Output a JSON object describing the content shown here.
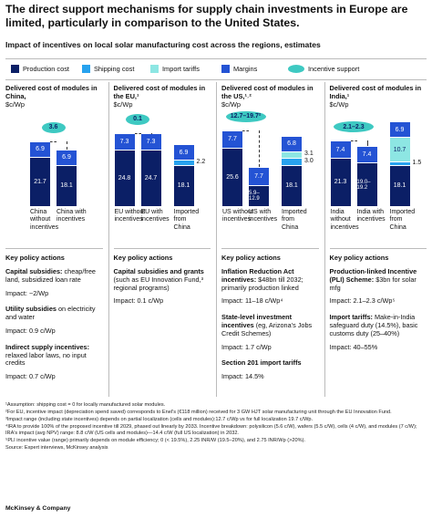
{
  "title": "The direct support mechanisms for supply chain investments in Europe are limited, particularly in comparison to the United States.",
  "subtitle": "Impact of incentives on local solar manufacturing cost across the regions, estimates",
  "incentive_legend": "Incentive support",
  "incentive_color": "#3ec9c2",
  "policy_heading": "Key policy actions",
  "chart_data": [
    {
      "type": "bar",
      "stacked": true,
      "title": "Delivered cost of modules in China,",
      "unit": "$c/Wp",
      "incentive": "3.6",
      "categories": [
        "China without incentives",
        "China with incentives"
      ],
      "series": [
        {
          "name": "Production cost",
          "color": "#0b1f66",
          "values": [
            21.7,
            18.1
          ]
        },
        {
          "name": "Shipping cost",
          "color": "#27a2ee",
          "values": [
            null,
            null
          ]
        },
        {
          "name": "Import tariffs",
          "color": "#8de6e3",
          "values": [
            null,
            null
          ]
        },
        {
          "name": "Margins",
          "color": "#2453d4",
          "values": [
            6.9,
            6.9
          ]
        }
      ],
      "actions": [
        {
          "heading": "Capital subsidies:",
          "text": "cheap/free land, subsidized loan rate",
          "impact": "Impact: ~2/Wp"
        },
        {
          "heading": "Utility subsidies",
          "text": "on electricity and water",
          "impact": "Impact: 0.9 c/Wp"
        },
        {
          "heading": "Indirect supply incentives:",
          "text": "relaxed labor laws, no input credits",
          "impact": "Impact: 0.7 c/Wp"
        }
      ]
    },
    {
      "type": "bar",
      "stacked": true,
      "title": "Delivered cost of modules in the EU,¹",
      "unit": "$c/Wp",
      "incentive": "0.1",
      "categories": [
        "EU without incentives",
        "EU with incentives",
        "Imported from China"
      ],
      "series": [
        {
          "name": "Production cost",
          "color": "#0b1f66",
          "values": [
            24.8,
            24.7,
            18.1
          ]
        },
        {
          "name": "Shipping cost",
          "color": "#27a2ee",
          "values": [
            null,
            null,
            2.2
          ]
        },
        {
          "name": "Import tariffs",
          "color": "#8de6e3",
          "values": [
            null,
            null,
            null
          ]
        },
        {
          "name": "Margins",
          "color": "#2453d4",
          "values": [
            7.3,
            7.3,
            6.9
          ]
        }
      ],
      "actions": [
        {
          "heading": "Capital subsidies and grants",
          "text": "(such as EU Innovation Fund,³ regional programs)",
          "impact": "Impact: 0.1 c/Wp"
        }
      ]
    },
    {
      "type": "bar",
      "stacked": true,
      "title": "Delivered cost of modules in the US,¹˒²",
      "unit": "$c/Wp",
      "incentive": "12.7–19.7²",
      "categories": [
        "US without incentives",
        "US with incentives",
        "Imported from China"
      ],
      "series": [
        {
          "name": "Production cost",
          "color": "#0b1f66",
          "values": [
            25.6,
            9.4,
            18.1
          ],
          "value_labels": [
            "25.6",
            "5.9–12.9",
            "18.1"
          ]
        },
        {
          "name": "Shipping cost",
          "color": "#27a2ee",
          "values": [
            null,
            null,
            3
          ],
          "value_labels": [
            null,
            null,
            "3.0"
          ]
        },
        {
          "name": "Import tariffs",
          "color": "#8de6e3",
          "values": [
            null,
            null,
            3.1
          ]
        },
        {
          "name": "Margins",
          "color": "#2453d4",
          "values": [
            7.7,
            7.7,
            6.8
          ]
        }
      ],
      "actions": [
        {
          "heading": "Inflation Reduction Act incentives:",
          "text": "$48bn till 2032; primarily production linked",
          "impact": "Impact: 11–18 c/Wp⁴"
        },
        {
          "heading": "State-level investment incentives",
          "text": "(eg, Arizona's Jobs Credit Schemes)",
          "impact": "Impact: 1.7 c/Wp"
        },
        {
          "heading": "Section 201 import tariffs",
          "impact": "Impact: 14.5%"
        }
      ]
    },
    {
      "type": "bar",
      "stacked": true,
      "title": "Delivered cost of modules in India,¹",
      "unit": "$c/Wp",
      "incentive": "2.1–2.3",
      "categories": [
        "India without incentives",
        "India with incentives",
        "Imported from China"
      ],
      "series": [
        {
          "name": "Production cost",
          "color": "#0b1f66",
          "values": [
            21.3,
            19.1,
            18.1
          ],
          "value_labels": [
            "21.3",
            "19.0–19.2",
            "18.1"
          ]
        },
        {
          "name": "Shipping cost",
          "color": "#27a2ee",
          "values": [
            null,
            null,
            1.5
          ]
        },
        {
          "name": "Import tariffs",
          "color": "#8de6e3",
          "values": [
            null,
            null,
            10.7
          ]
        },
        {
          "name": "Margins",
          "color": "#2453d4",
          "values": [
            7.4,
            7.4,
            6.9
          ]
        }
      ],
      "actions": [
        {
          "heading": "Production-linked Incentive (PLI) Scheme:",
          "text": "$3bn for solar mfg",
          "impact": "Impact: 2.1–2.3 c/Wp⁵"
        },
        {
          "heading": "Import tariffs:",
          "text": "Make-in-India safeguard duty (14.5%), basic customs duty (25–40%)",
          "impact": "Impact: 40–55%"
        }
      ]
    }
  ],
  "footnotes": [
    "¹Assumption: shipping cost = 0 for locally manufactured solar modules.",
    "²For EU, incentive impact (depreciation spend saved) corresponds to Enel's (€118 million) received for 3 GW HJT solar manufacturing unit through the EU Innovation Fund.",
    "³Impact range (including state incentives) depends on partial localization (cells and modules):12.7 c/Wp vs for full localization 19.7 c/Wp.",
    "⁴IRA to provide 100% of the proposed incentive till 2029, phased out linearly by 2033. Incentive breakdown: polysilicon (5.6 c/W), wafers (5.5 c/W), cells (4 c/W), and modules (7 c/W); IRA's impact (avg NPV) range: 8.8 c/W (US cells and modules)—14.4 c/W (full US localization) in 2032.",
    "⁵PLI incentive value (range) primarily depends on module efficiency; 0 (< 19.5%), 2.25 INR/W (19.5–20%), and 2.75 INR/Wp (>20%)."
  ],
  "source": "Source: Expert interviews, McKinsey analysis",
  "brand": "McKinsey & Company"
}
